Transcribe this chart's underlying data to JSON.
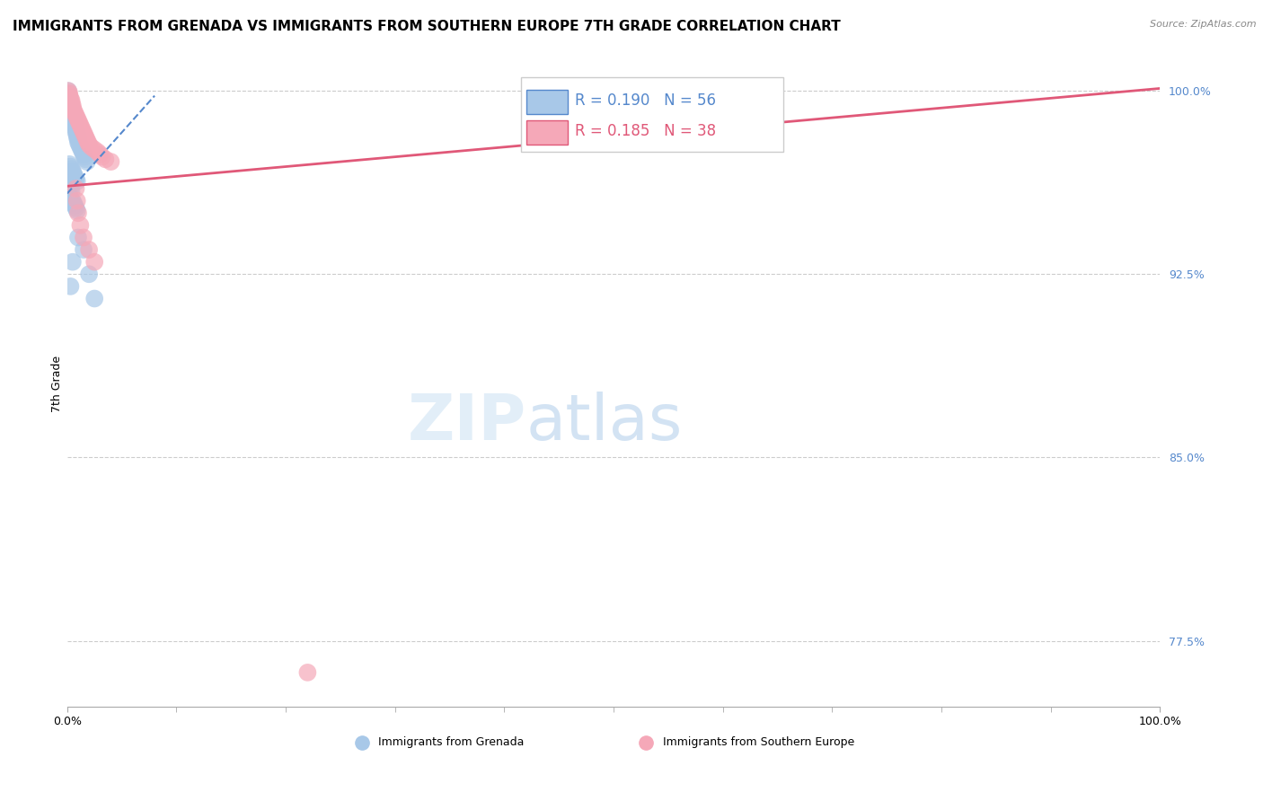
{
  "title": "IMMIGRANTS FROM GRENADA VS IMMIGRANTS FROM SOUTHERN EUROPE 7TH GRADE CORRELATION CHART",
  "source": "Source: ZipAtlas.com",
  "ylabel": "7th Grade",
  "xlim": [
    0,
    1.0
  ],
  "ylim": [
    0.748,
    1.012
  ],
  "yticks": [
    0.775,
    0.85,
    0.925,
    1.0
  ],
  "ytick_labels": [
    "77.5%",
    "85.0%",
    "92.5%",
    "100.0%"
  ],
  "blue_color": "#a8c8e8",
  "pink_color": "#f5a8b8",
  "blue_line_color": "#5588cc",
  "pink_line_color": "#e05878",
  "blue_trend_x": [
    0.0,
    0.08
  ],
  "blue_trend_y": [
    0.958,
    0.998
  ],
  "pink_trend_x": [
    0.0,
    1.0
  ],
  "pink_trend_y": [
    0.961,
    1.001
  ],
  "blue_scatter_x": [
    0.001,
    0.001,
    0.001,
    0.002,
    0.002,
    0.003,
    0.003,
    0.003,
    0.004,
    0.004,
    0.005,
    0.005,
    0.006,
    0.006,
    0.007,
    0.007,
    0.008,
    0.008,
    0.009,
    0.009,
    0.01,
    0.01,
    0.011,
    0.012,
    0.013,
    0.014,
    0.015,
    0.016,
    0.017,
    0.018,
    0.002,
    0.003,
    0.004,
    0.005,
    0.006,
    0.007,
    0.008,
    0.009,
    0.001,
    0.002,
    0.003,
    0.004,
    0.001,
    0.002,
    0.003,
    0.005,
    0.006,
    0.007,
    0.008,
    0.009,
    0.015,
    0.02,
    0.025,
    0.01,
    0.005,
    0.003
  ],
  "blue_scatter_y": [
    1.0,
    0.999,
    0.998,
    0.997,
    0.996,
    0.995,
    0.994,
    0.993,
    0.992,
    0.991,
    0.99,
    0.989,
    0.988,
    0.987,
    0.986,
    0.985,
    0.984,
    0.983,
    0.982,
    0.981,
    0.98,
    0.979,
    0.978,
    0.977,
    0.976,
    0.975,
    0.974,
    0.973,
    0.972,
    0.971,
    0.97,
    0.969,
    0.968,
    0.967,
    0.966,
    0.965,
    0.964,
    0.963,
    0.962,
    0.961,
    0.96,
    0.959,
    0.958,
    0.957,
    0.956,
    0.955,
    0.954,
    0.953,
    0.952,
    0.951,
    0.935,
    0.925,
    0.915,
    0.94,
    0.93,
    0.92
  ],
  "pink_scatter_x": [
    0.001,
    0.002,
    0.002,
    0.003,
    0.004,
    0.004,
    0.005,
    0.005,
    0.006,
    0.007,
    0.008,
    0.009,
    0.01,
    0.011,
    0.012,
    0.013,
    0.014,
    0.015,
    0.016,
    0.017,
    0.018,
    0.019,
    0.02,
    0.022,
    0.025,
    0.028,
    0.03,
    0.032,
    0.035,
    0.04,
    0.008,
    0.009,
    0.01,
    0.012,
    0.015,
    0.02,
    0.025,
    0.22
  ],
  "pink_scatter_y": [
    1.0,
    0.999,
    0.998,
    0.997,
    0.996,
    0.995,
    0.994,
    0.993,
    0.992,
    0.991,
    0.99,
    0.989,
    0.988,
    0.987,
    0.986,
    0.985,
    0.984,
    0.983,
    0.982,
    0.981,
    0.98,
    0.979,
    0.978,
    0.977,
    0.976,
    0.975,
    0.974,
    0.973,
    0.972,
    0.971,
    0.96,
    0.955,
    0.95,
    0.945,
    0.94,
    0.935,
    0.93,
    0.762
  ],
  "title_fontsize": 11,
  "axis_label_fontsize": 9,
  "tick_fontsize": 9,
  "legend_fontsize": 12
}
